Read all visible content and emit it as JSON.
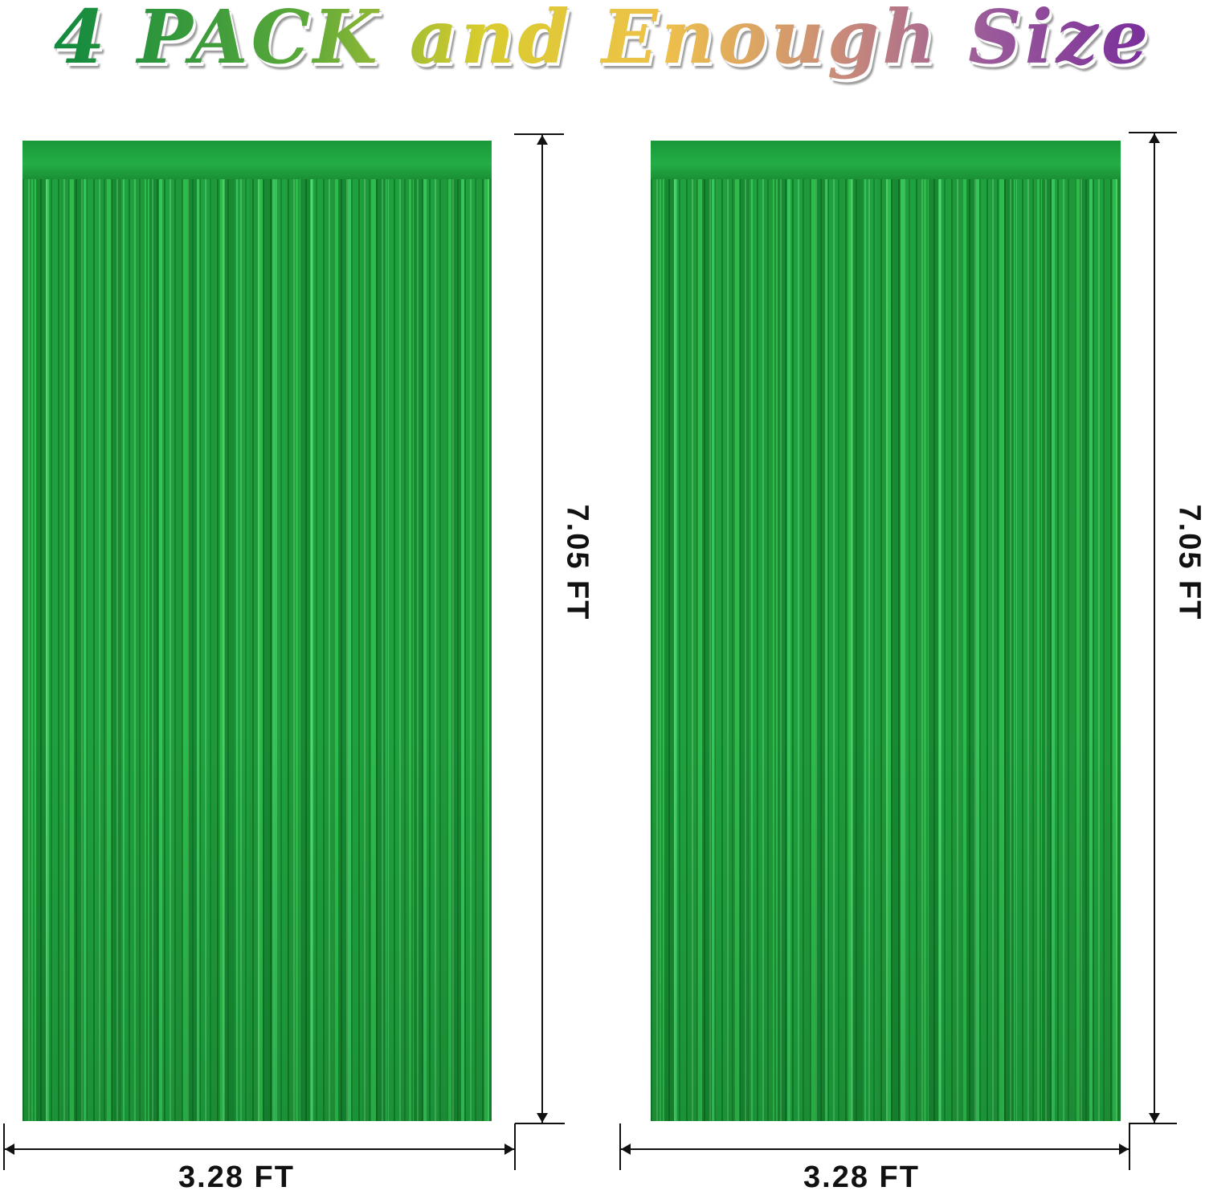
{
  "title": "4 PACK and Enough Size",
  "curtains": [
    {
      "width_label": "3.28 FT",
      "height_label": "7.05 FT",
      "color": "#1f9a3a"
    },
    {
      "width_label": "3.28 FT",
      "height_label": "7.05 FT",
      "color": "#1f9a3a"
    }
  ],
  "colors": {
    "title_gradient": [
      "#138a3e",
      "#d8cc2e",
      "#efc14a",
      "#7a2f9a"
    ],
    "dimension_lines": "#111111"
  }
}
